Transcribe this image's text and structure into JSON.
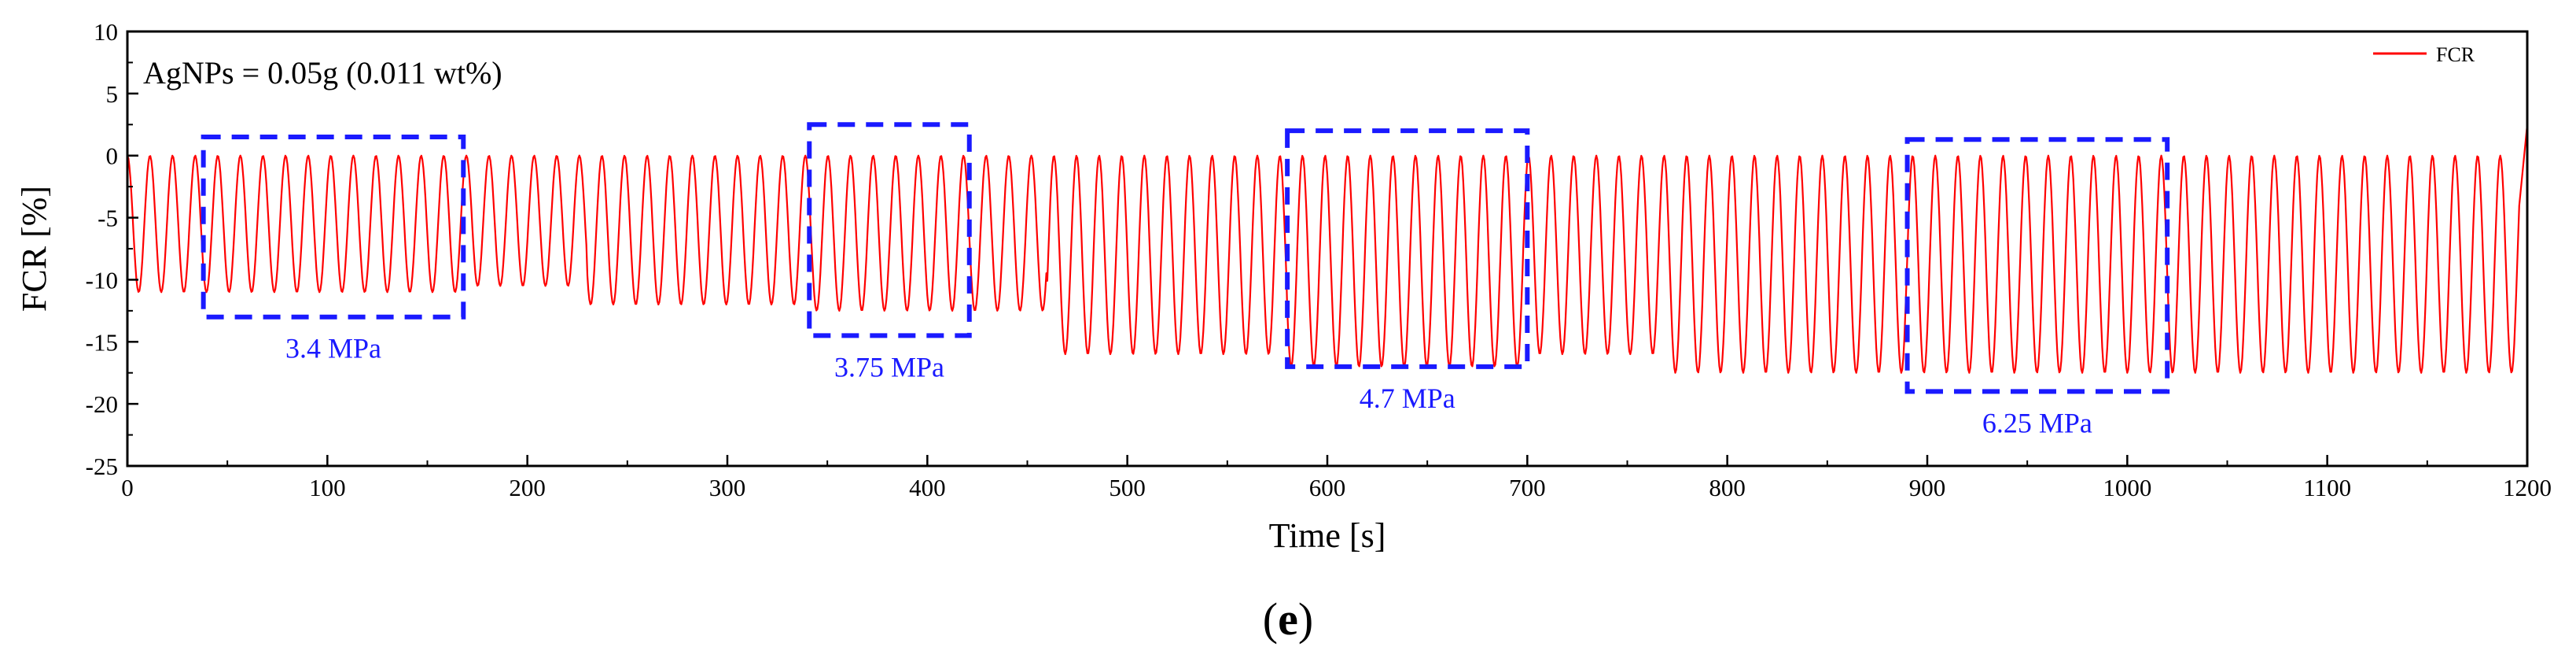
{
  "colors": {
    "series": "#ff0000",
    "region": "#1a1aff",
    "axis": "#000000"
  },
  "chart_data": {
    "type": "line",
    "annotation": "AgNPs = 0.05g (0.011 wt%)",
    "xlabel": "Time [s]",
    "ylabel": "FCR [%]",
    "xlim": [
      0,
      1200
    ],
    "ylim": [
      -25,
      10
    ],
    "xticks": [
      0,
      100,
      200,
      300,
      400,
      500,
      600,
      700,
      800,
      900,
      1000,
      1100,
      1200
    ],
    "yticks": [
      10,
      5,
      0,
      -5,
      -10,
      -15,
      -20,
      -25
    ],
    "legend": {
      "label": "FCR",
      "position": "top-right"
    },
    "series": [
      {
        "name": "FCR",
        "signal": "periodic",
        "period_s": 11.3,
        "start_s": 0,
        "end_s": 1196,
        "upper_value": 0,
        "segments": [
          {
            "x_range": [
              0,
              170
            ],
            "min": -11
          },
          {
            "x_range": [
              170,
              230
            ],
            "min": -10.5
          },
          {
            "x_range": [
              230,
              340
            ],
            "min": -12
          },
          {
            "x_range": [
              340,
              460
            ],
            "min": -12.5
          },
          {
            "x_range": [
              460,
              580
            ],
            "min": -16
          },
          {
            "x_range": [
              580,
              700
            ],
            "min": -17
          },
          {
            "x_range": [
              700,
              770
            ],
            "min": -16
          },
          {
            "x_range": [
              770,
              1020
            ],
            "min": -17.5
          },
          {
            "x_range": [
              1020,
              1190
            ],
            "min": -17.5
          }
        ],
        "final_value": 2.5
      }
    ],
    "regions": [
      {
        "label": "3.4  MPa",
        "x_range": [
          38,
          168
        ],
        "y_range": [
          -13,
          1.5
        ]
      },
      {
        "label": "3.75  MPa",
        "x_range": [
          341,
          421
        ],
        "y_range": [
          -14.5,
          2.5
        ]
      },
      {
        "label": "4.7  MPa",
        "x_range": [
          580,
          700
        ],
        "y_range": [
          -17,
          2
        ]
      },
      {
        "label": "6.25  MPa",
        "x_range": [
          890,
          1020
        ],
        "y_range": [
          -19,
          1.3
        ]
      }
    ]
  },
  "panel_label": {
    "open": "(",
    "letter": "e",
    "close": ")"
  }
}
